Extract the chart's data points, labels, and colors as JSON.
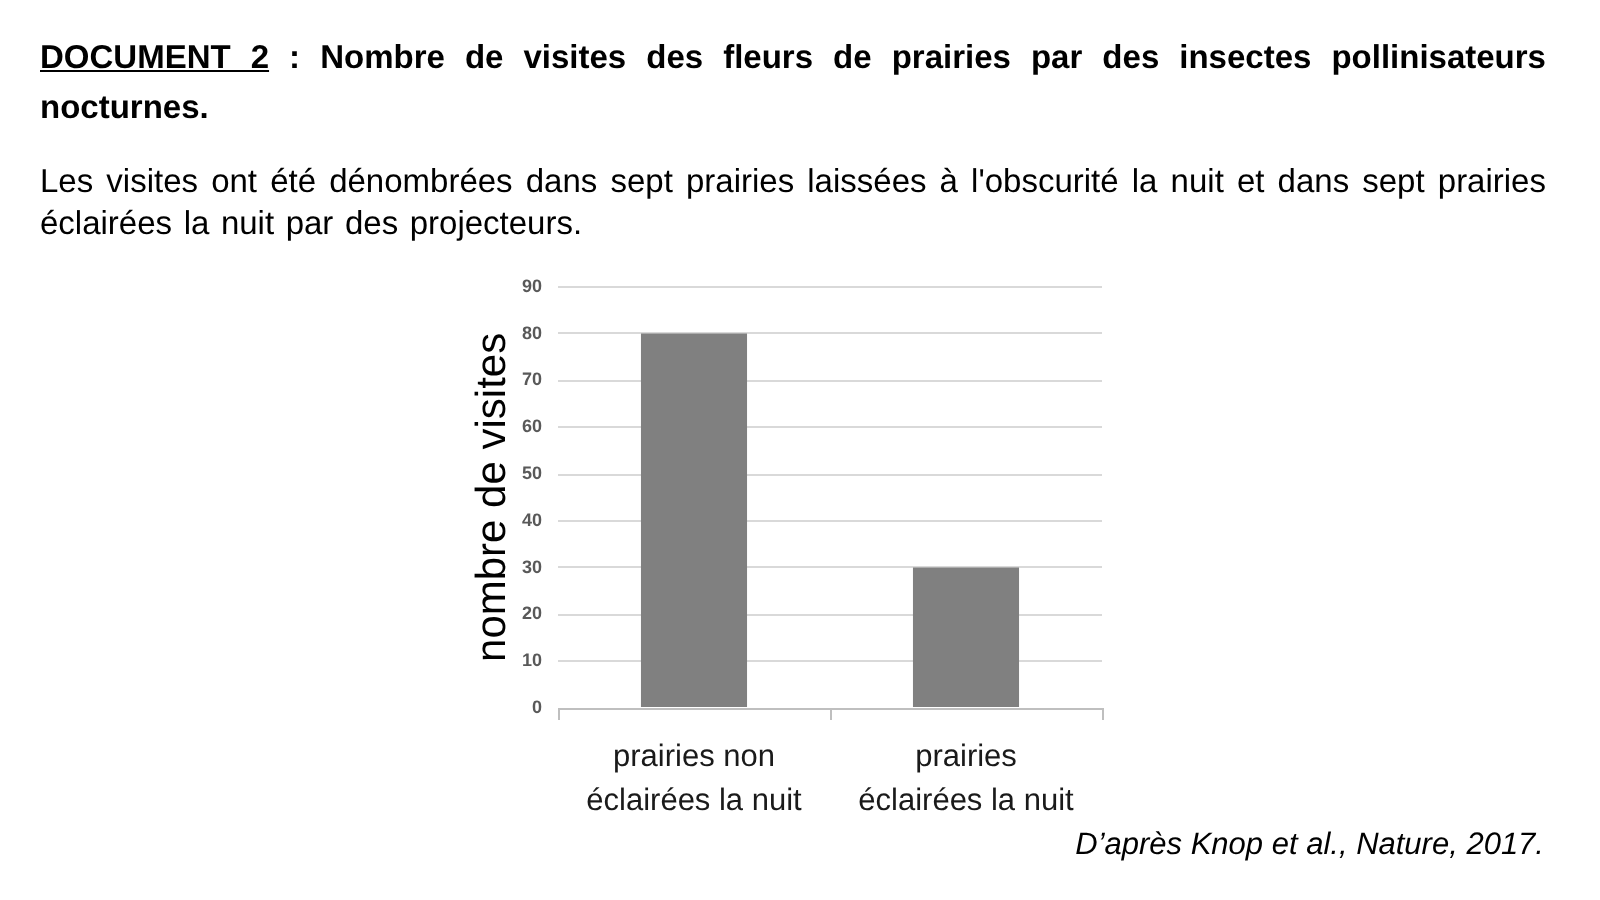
{
  "chart_data": {
    "type": "bar",
    "title": "DOCUMENT 2 : Nombre de visites des fleurs de prairies par des insectes pollinisateurs nocturnes.",
    "subtitle": "Les visites ont été dénombrées dans sept prairies laissées à l'obscurité la nuit et dans sept prairies éclairées la nuit par des projecteurs.",
    "ylabel": "nombre de visites",
    "annotations": [
      "D’après Knop et al., Nature, 2017."
    ],
    "categories": [
      "prairies non éclairées la nuit",
      "prairies éclairées la nuit"
    ],
    "values": [
      80,
      30
    ],
    "color": "#808080",
    "ylim": [
      0,
      90
    ],
    "yticks": [
      0,
      10,
      20,
      30,
      40,
      50,
      60,
      70,
      80,
      90
    ],
    "grid": "y"
  }
}
